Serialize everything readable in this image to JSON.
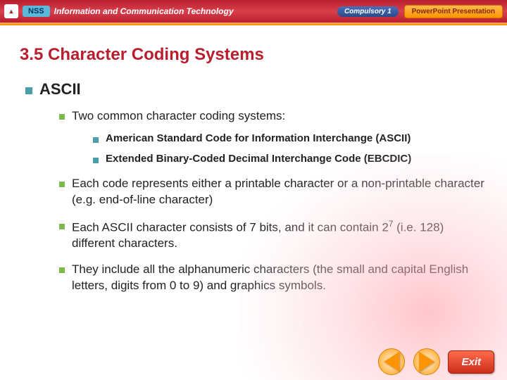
{
  "topbar": {
    "brand": "NSS",
    "title": "Information and Communication Technology",
    "compulsory": "Compulsory 1",
    "ppt_label": "PowerPoint Presentation"
  },
  "slide": {
    "heading": "3.5  Character Coding Systems",
    "l1": "ASCII",
    "l2_intro": "Two common character coding systems:",
    "l3a": "American Standard Code for Information Interchange (ASCII)",
    "l3b": "Extended Binary-Coded Decimal Interchange Code (EBCDIC)",
    "l2_b": "Each code represents either a printable character or a non-printable character (e.g. end-of-line character)",
    "l2_c_pre": "Each ASCII character consists of 7 bits, and it can contain 2",
    "l2_c_sup": "7",
    "l2_c_post": " (i.e. 128) different characters.",
    "l2_d": "They include all the alphanumeric characters (the small and capital English letters, digits from 0 to 9) and graphics symbols."
  },
  "footer": {
    "exit": "Exit"
  },
  "colors": {
    "header_red": "#b81e2e",
    "bullet_teal": "#4a9ea8",
    "bullet_green": "#7fb84d",
    "orange": "#ff9400",
    "exit_red": "#cc2e1a"
  }
}
